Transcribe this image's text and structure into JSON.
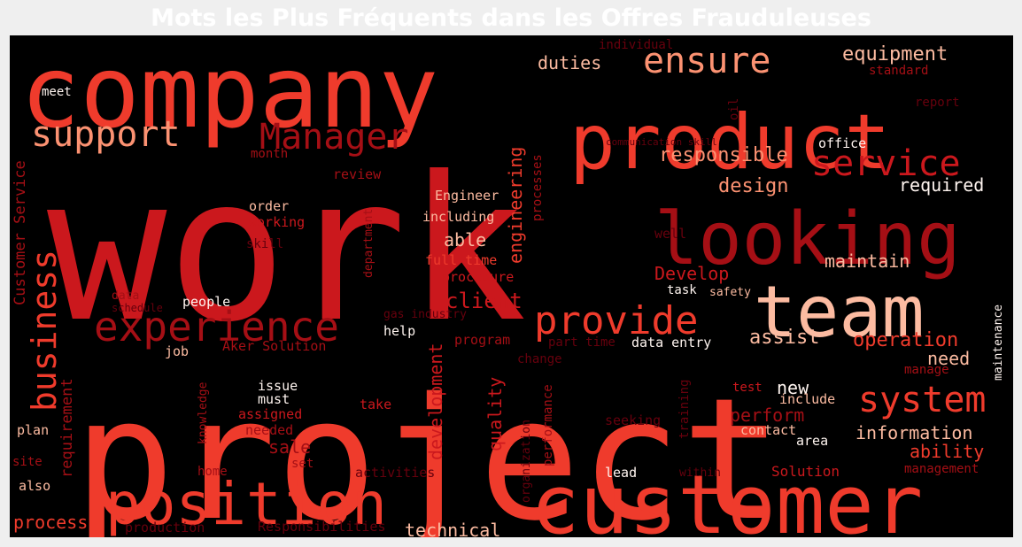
{
  "title": "Mots les Plus Fréquents dans les Offres Frauduleuses",
  "wordcloud": {
    "colors": {
      "pale": "#fcbba1",
      "light": "#fc9272",
      "medium": "#fb6a4a",
      "strong": "#ef3b2c",
      "deep": "#cb181d",
      "dark": "#a50f15",
      "darkest": "#67000d",
      "white": "#fff5f0"
    },
    "words": [
      {
        "text": "work",
        "color": "deep"
      },
      {
        "text": "project",
        "color": "strong"
      },
      {
        "text": "company",
        "color": "strong"
      },
      {
        "text": "product",
        "color": "strong"
      },
      {
        "text": "customer",
        "color": "strong"
      },
      {
        "text": "looking",
        "color": "dark"
      },
      {
        "text": "team",
        "color": "pale"
      },
      {
        "text": "position",
        "color": "strong"
      },
      {
        "text": "experience",
        "color": "dark"
      },
      {
        "text": "provide",
        "color": "strong"
      },
      {
        "text": "system",
        "color": "strong"
      },
      {
        "text": "service",
        "color": "deep"
      },
      {
        "text": "support",
        "color": "light"
      },
      {
        "text": "Manager",
        "color": "dark"
      },
      {
        "text": "ensure",
        "color": "light"
      },
      {
        "text": "business",
        "color": "strong"
      },
      {
        "text": "equipment",
        "color": "pale"
      },
      {
        "text": "duties",
        "color": "pale"
      },
      {
        "text": "responsible",
        "color": "light"
      },
      {
        "text": "design",
        "color": "light"
      },
      {
        "text": "required",
        "color": "white"
      },
      {
        "text": "maintain",
        "color": "pale"
      },
      {
        "text": "Develop",
        "color": "deep"
      },
      {
        "text": "client",
        "color": "deep"
      },
      {
        "text": "assist",
        "color": "pale"
      },
      {
        "text": "operation",
        "color": "strong"
      },
      {
        "text": "need",
        "color": "pale"
      },
      {
        "text": "new",
        "color": "white"
      },
      {
        "text": "perform",
        "color": "dark"
      },
      {
        "text": "information",
        "color": "pale"
      },
      {
        "text": "ability",
        "color": "strong"
      },
      {
        "text": "management",
        "color": "dark"
      },
      {
        "text": "Solution",
        "color": "deep"
      },
      {
        "text": "technical",
        "color": "pale"
      },
      {
        "text": "process",
        "color": "strong"
      },
      {
        "text": "quality",
        "color": "deep"
      },
      {
        "text": "development",
        "color": "deep"
      },
      {
        "text": "engineering",
        "color": "strong"
      },
      {
        "text": "Customer Service",
        "color": "dark"
      },
      {
        "text": "requirement",
        "color": "dark"
      },
      {
        "text": "sale",
        "color": "dark"
      },
      {
        "text": "able",
        "color": "pale"
      },
      {
        "text": "full time",
        "color": "strong"
      },
      {
        "text": "procedure",
        "color": "deep"
      },
      {
        "text": "including",
        "color": "pale"
      },
      {
        "text": "Engineer",
        "color": "pale"
      },
      {
        "text": "order",
        "color": "pale"
      },
      {
        "text": "working",
        "color": "deep"
      },
      {
        "text": "skill",
        "color": "darkest"
      },
      {
        "text": "review",
        "color": "dark"
      },
      {
        "text": "month",
        "color": "dark"
      },
      {
        "text": "meet",
        "color": "white"
      },
      {
        "text": "individual",
        "color": "darkest"
      },
      {
        "text": "standard",
        "color": "dark"
      },
      {
        "text": "report",
        "color": "darkest"
      },
      {
        "text": "oil",
        "color": "darkest"
      },
      {
        "text": "communication skill",
        "color": "darkest"
      },
      {
        "text": "office",
        "color": "white"
      },
      {
        "text": "processes",
        "color": "dark"
      },
      {
        "text": "well",
        "color": "darkest"
      },
      {
        "text": "department",
        "color": "dark"
      },
      {
        "text": "task",
        "color": "white"
      },
      {
        "text": "safety",
        "color": "pale"
      },
      {
        "text": "maintenance",
        "color": "white"
      },
      {
        "text": "data",
        "color": "dark"
      },
      {
        "text": "schedule",
        "color": "darkest"
      },
      {
        "text": "people",
        "color": "white"
      },
      {
        "text": "gas industry",
        "color": "darkest"
      },
      {
        "text": "help",
        "color": "white"
      },
      {
        "text": "program",
        "color": "dark"
      },
      {
        "text": "part time",
        "color": "darkest"
      },
      {
        "text": "data entry",
        "color": "white"
      },
      {
        "text": "Aker Solution",
        "color": "dark"
      },
      {
        "text": "job",
        "color": "pale"
      },
      {
        "text": "change",
        "color": "darkest"
      },
      {
        "text": "manage",
        "color": "dark"
      },
      {
        "text": "knowledge",
        "color": "dark"
      },
      {
        "text": "issue",
        "color": "white"
      },
      {
        "text": "must",
        "color": "white"
      },
      {
        "text": "assigned",
        "color": "deep"
      },
      {
        "text": "needed",
        "color": "dark"
      },
      {
        "text": "take",
        "color": "deep"
      },
      {
        "text": "performance",
        "color": "dark"
      },
      {
        "text": "training",
        "color": "darkest"
      },
      {
        "text": "test",
        "color": "deep"
      },
      {
        "text": "include",
        "color": "pale"
      },
      {
        "text": "seeking",
        "color": "darkest"
      },
      {
        "text": "contact",
        "color": "pale"
      },
      {
        "text": "area",
        "color": "white"
      },
      {
        "text": "plan",
        "color": "pale"
      },
      {
        "text": "site",
        "color": "dark"
      },
      {
        "text": "also",
        "color": "pale"
      },
      {
        "text": "home",
        "color": "dark"
      },
      {
        "text": "set",
        "color": "dark"
      },
      {
        "text": "activities",
        "color": "darkest"
      },
      {
        "text": "organization",
        "color": "darkest"
      },
      {
        "text": "lead",
        "color": "white"
      },
      {
        "text": "within",
        "color": "darkest"
      },
      {
        "text": "production",
        "color": "darkest"
      },
      {
        "text": "Responsibilities",
        "color": "darkest"
      }
    ]
  }
}
